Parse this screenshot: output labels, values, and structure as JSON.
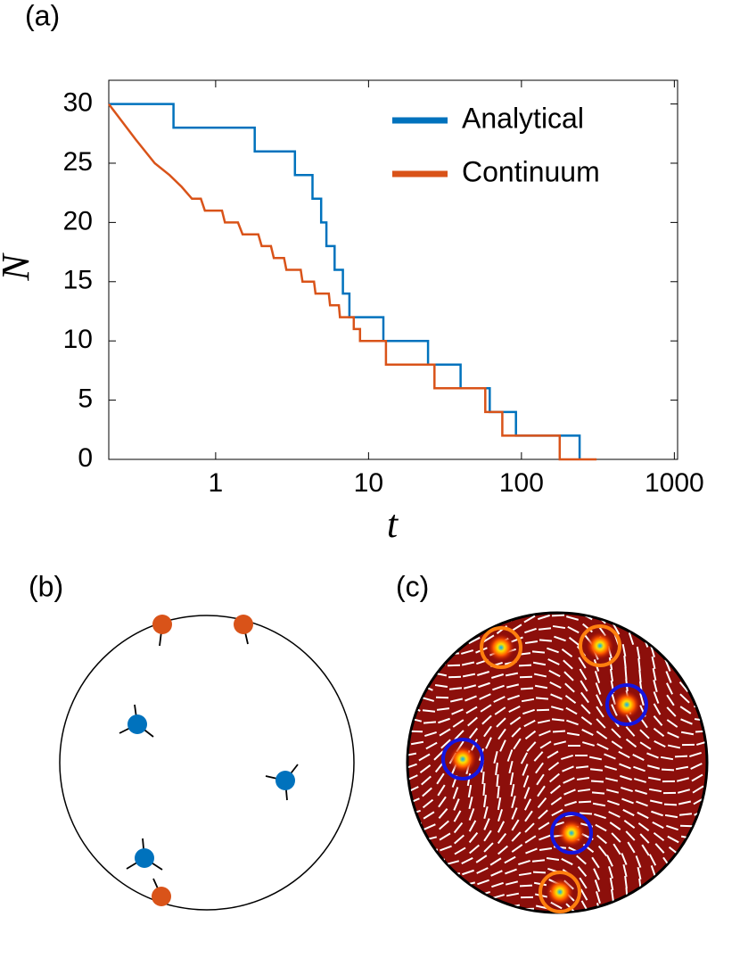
{
  "chart_data": {
    "type": "line",
    "panel_label": "(a)",
    "x_label": "t",
    "y_label": "N",
    "xscale": "log",
    "xlim": [
      0.2,
      1050
    ],
    "xticks": [
      1,
      10,
      100,
      1000
    ],
    "ylim": [
      0,
      32
    ],
    "yticks": [
      0,
      5,
      10,
      15,
      20,
      25,
      30
    ],
    "legend": "upper right",
    "series": [
      {
        "name": "Analytical",
        "color": "#0072bd",
        "x": [
          0.2,
          0.53,
          0.53,
          1.8,
          1.8,
          3.3,
          3.3,
          4.3,
          4.3,
          4.9,
          4.9,
          5.3,
          5.3,
          6.0,
          6.0,
          6.8,
          6.8,
          7.5,
          7.5,
          12.5,
          12.5,
          24.5,
          24.5,
          40,
          40,
          62,
          62,
          92,
          92,
          240,
          240
        ],
        "values": [
          30,
          30,
          28,
          28,
          26,
          26,
          24,
          24,
          22,
          22,
          20,
          20,
          18,
          18,
          16,
          16,
          14,
          14,
          12,
          12,
          10,
          10,
          8,
          8,
          6,
          6,
          4,
          4,
          2,
          2,
          0
        ]
      },
      {
        "name": "Continuum",
        "color": "#d95319",
        "x": [
          0.2,
          0.3,
          0.4,
          0.5,
          0.6,
          0.7,
          0.8,
          0.85,
          1.1,
          1.15,
          1.4,
          1.5,
          1.9,
          2.0,
          2.3,
          2.4,
          2.8,
          2.9,
          3.6,
          3.7,
          4.4,
          4.5,
          5.5,
          5.6,
          6.4,
          6.5,
          8,
          8,
          8.8,
          8.8,
          13,
          13,
          27,
          27,
          58,
          58,
          75,
          75,
          178,
          178,
          310
        ],
        "values": [
          30,
          27,
          25,
          24,
          23,
          22,
          22,
          21,
          21,
          20,
          20,
          19,
          19,
          18,
          18,
          17,
          17,
          16,
          16,
          15,
          15,
          14,
          14,
          13,
          13,
          12,
          12,
          11,
          11,
          10,
          10,
          8,
          8,
          6,
          6,
          4,
          4,
          2,
          2,
          0,
          0
        ]
      }
    ]
  },
  "panels": [
    "(b)",
    "(c)"
  ]
}
